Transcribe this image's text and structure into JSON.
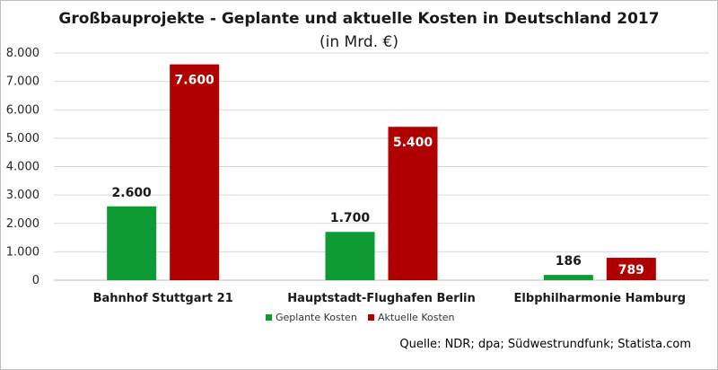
{
  "title": {
    "bold": "Großbauprojekte - Geplante und aktuelle Kosten in Deutschland 2017",
    "unit": " (in Mrd. €)"
  },
  "source": "Quelle: NDR; dpa; Südwestrundfunk; Statista.com",
  "colors": {
    "planned": "#0f9b34",
    "actual": "#b00000",
    "gridline": "#d9d9d9",
    "axis": "#bfbfbf"
  },
  "chart_data": {
    "type": "bar",
    "title": "Großbauprojekte - Geplante und aktuelle Kosten in Deutschland 2017 (in Mrd. €)",
    "categories": [
      "Bahnhof Stuttgart 21",
      "Hauptstadt-Flughafen Berlin",
      "Elbphilharmonie Hamburg"
    ],
    "series": [
      {
        "name": "Geplante Kosten",
        "values": [
          2600,
          1700,
          186
        ],
        "labels": [
          "2.600",
          "1.700",
          "186"
        ]
      },
      {
        "name": "Aktuelle Kosten",
        "values": [
          7600,
          5400,
          789
        ],
        "labels": [
          "7.600",
          "5.400",
          "789"
        ]
      }
    ],
    "ylim": [
      0,
      8000
    ],
    "yticks": [
      0,
      1000,
      2000,
      3000,
      4000,
      5000,
      6000,
      7000,
      8000
    ],
    "ytick_labels": [
      "0",
      "1.000",
      "2.000",
      "3.000",
      "4.000",
      "5.000",
      "6.000",
      "7.000",
      "8.000"
    ],
    "xlabel": "",
    "ylabel": "",
    "grid": true,
    "legend_position": "bottom-center"
  }
}
